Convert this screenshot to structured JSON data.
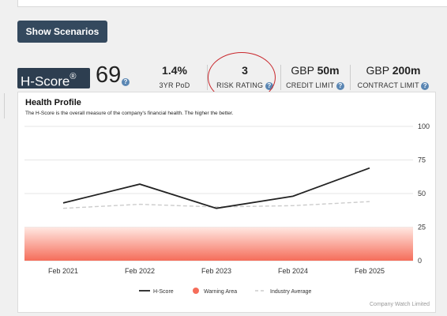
{
  "toolbar": {
    "show_scenarios_label": "Show Scenarios"
  },
  "hscore": {
    "badge": "H-Score",
    "badge_mark": "®",
    "value": "69",
    "help": "?"
  },
  "metrics": [
    {
      "value": "1.4%",
      "label": "3YR PoD",
      "help": false
    },
    {
      "value": "3",
      "label": "RISK RATING",
      "help": true
    },
    {
      "prefix": "GBP",
      "value": "50m",
      "label": "CREDIT LIMIT",
      "help": true
    },
    {
      "prefix": "GBP",
      "value": "200m",
      "label": "CONTRACT LIMIT",
      "help": true
    }
  ],
  "card": {
    "title": "Health Profile",
    "subtitle": "The H-Score is the overall measure of the company's financial health. The higher the better.",
    "credit": "Company Watch Limited"
  },
  "colors": {
    "button_bg": "#34495e",
    "badge_bg": "#2d3e50",
    "help_icon": "#5a86b3",
    "annotation": "#c9282d",
    "hscore_line": "#222222",
    "industry_line": "#cccccc",
    "warning_top": "#ffe8e2",
    "warning_bottom": "#f56d5a"
  },
  "chart_data": {
    "type": "line",
    "categories": [
      "Feb 2021",
      "Feb 2022",
      "Feb 2023",
      "Feb 2024",
      "Feb 2025"
    ],
    "series": [
      {
        "name": "H-Score",
        "values": [
          43,
          57,
          39,
          48,
          69
        ]
      },
      {
        "name": "Industry Average",
        "values": [
          39,
          42,
          40,
          41,
          44
        ]
      }
    ],
    "warning_area": {
      "name": "Warning Area",
      "range": [
        0,
        25
      ]
    },
    "yticks": [
      0,
      25,
      50,
      75,
      100
    ],
    "ylim": [
      0,
      100
    ],
    "y_axis_side": "right",
    "grid": true,
    "legend_position": "bottom"
  }
}
